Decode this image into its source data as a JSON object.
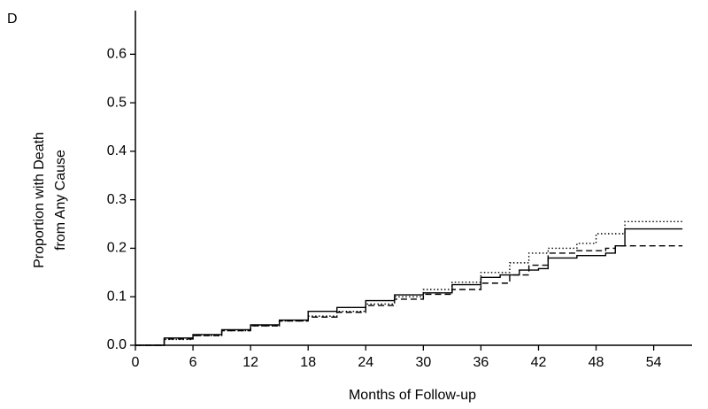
{
  "chart_data": {
    "type": "step",
    "panel_label": "D",
    "xlabel": "Months of Follow-up",
    "ylabel": [
      "Proportion with Death",
      "from Any Cause"
    ],
    "xlim": [
      0,
      58
    ],
    "ylim": [
      0,
      0.69
    ],
    "xticks": [
      0,
      6,
      12,
      18,
      24,
      30,
      36,
      42,
      48,
      54
    ],
    "yticks": [
      {
        "value": 0,
        "label": "0.0"
      },
      0.1,
      0.2,
      0.3,
      0.4,
      0.5,
      0.6
    ],
    "grid": false,
    "series": [
      {
        "color": "#000000",
        "dash": "solid",
        "x": [
          0,
          3,
          6,
          9,
          12,
          15,
          18,
          21,
          24,
          27,
          30,
          33,
          36,
          38,
          40,
          42,
          43,
          46,
          49,
          50,
          51,
          57
        ],
        "values": [
          0,
          0.015,
          0.022,
          0.032,
          0.042,
          0.052,
          0.07,
          0.078,
          0.092,
          0.104,
          0.108,
          0.125,
          0.14,
          0.145,
          0.155,
          0.158,
          0.18,
          0.185,
          0.19,
          0.205,
          0.24,
          0.24
        ]
      },
      {
        "color": "#000000",
        "dash": "dotted",
        "x": [
          0,
          3,
          6,
          9,
          12,
          15,
          18,
          21,
          24,
          27,
          30,
          33,
          36,
          39,
          41,
          43,
          46,
          48,
          51,
          57
        ],
        "values": [
          0,
          0.012,
          0.02,
          0.03,
          0.04,
          0.05,
          0.06,
          0.07,
          0.085,
          0.1,
          0.115,
          0.13,
          0.15,
          0.17,
          0.19,
          0.2,
          0.21,
          0.23,
          0.255,
          0.255
        ]
      },
      {
        "color": "#000000",
        "dash": "dashed",
        "x": [
          0,
          3,
          6,
          9,
          12,
          15,
          18,
          21,
          24,
          27,
          30,
          33,
          36,
          39,
          41,
          43,
          46,
          49,
          50,
          57
        ],
        "values": [
          0,
          0.013,
          0.02,
          0.03,
          0.04,
          0.05,
          0.058,
          0.068,
          0.082,
          0.095,
          0.105,
          0.115,
          0.128,
          0.145,
          0.165,
          0.19,
          0.195,
          0.2,
          0.205,
          0.205
        ]
      }
    ]
  }
}
